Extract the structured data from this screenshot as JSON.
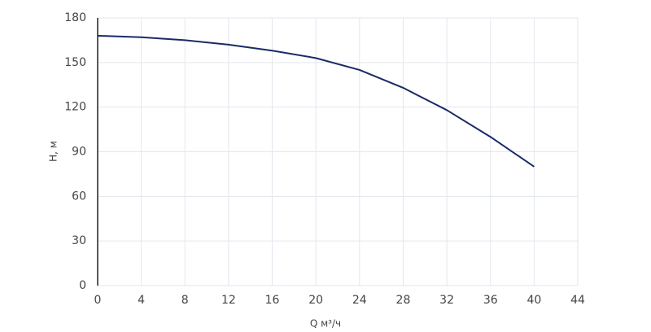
{
  "chart_data": {
    "type": "line",
    "xlabel": "Q м³/ч",
    "ylabel": "H, м",
    "x": [
      0,
      4,
      8,
      12,
      16,
      20,
      24,
      28,
      32,
      36,
      40
    ],
    "series": [
      {
        "name": "H",
        "color": "#1b2a66",
        "values": [
          168,
          167,
          165,
          162,
          158,
          153,
          145,
          133,
          118,
          100,
          80
        ]
      }
    ],
    "xlim": [
      0,
      44
    ],
    "xticks": [
      0,
      4,
      8,
      12,
      16,
      20,
      24,
      28,
      32,
      36,
      40,
      44
    ],
    "ylim": [
      0,
      180
    ],
    "yticks": [
      0,
      30,
      60,
      90,
      120,
      150,
      180
    ],
    "grid": true
  }
}
